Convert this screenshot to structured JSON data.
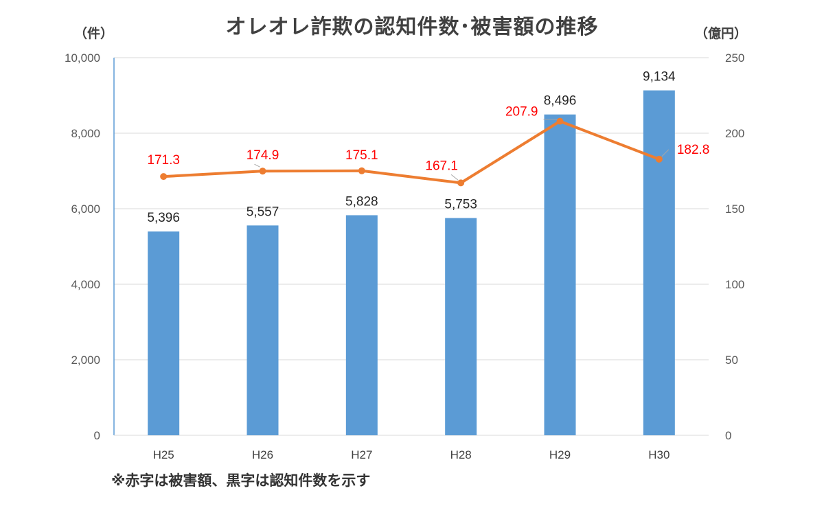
{
  "chart_data": {
    "type": "bar+line",
    "title": "オレオレ詐欺の認知件数･被害額の推移",
    "left_axis_label": "（件）",
    "right_axis_label": "（億円）",
    "categories": [
      "H25",
      "H26",
      "H27",
      "H28",
      "H29",
      "H30"
    ],
    "series": [
      {
        "kind": "bar",
        "axis": "left",
        "color": "#5b9bd5",
        "values": [
          5396,
          5557,
          5828,
          5753,
          8496,
          9134
        ],
        "labels": [
          "5,396",
          "5,557",
          "5,828",
          "5,753",
          "8,496",
          "9,134"
        ]
      },
      {
        "kind": "line",
        "axis": "right",
        "color": "#ed7d31",
        "label_color": "#ff0000",
        "values": [
          171.3,
          174.9,
          175.1,
          167.1,
          207.9,
          182.8
        ],
        "labels": [
          "171.3",
          "174.9",
          "175.1",
          "167.1",
          "207.9",
          "182.8"
        ]
      }
    ],
    "left_ylim": [
      0,
      10000
    ],
    "left_ticks": [
      "0",
      "2,000",
      "4,000",
      "6,000",
      "8,000",
      "10,000"
    ],
    "right_ylim": [
      0,
      250
    ],
    "right_ticks": [
      "0",
      "50",
      "100",
      "150",
      "200",
      "250"
    ],
    "grid": true,
    "footnote": "※赤字は被害額、黒字は認知件数を示す"
  }
}
